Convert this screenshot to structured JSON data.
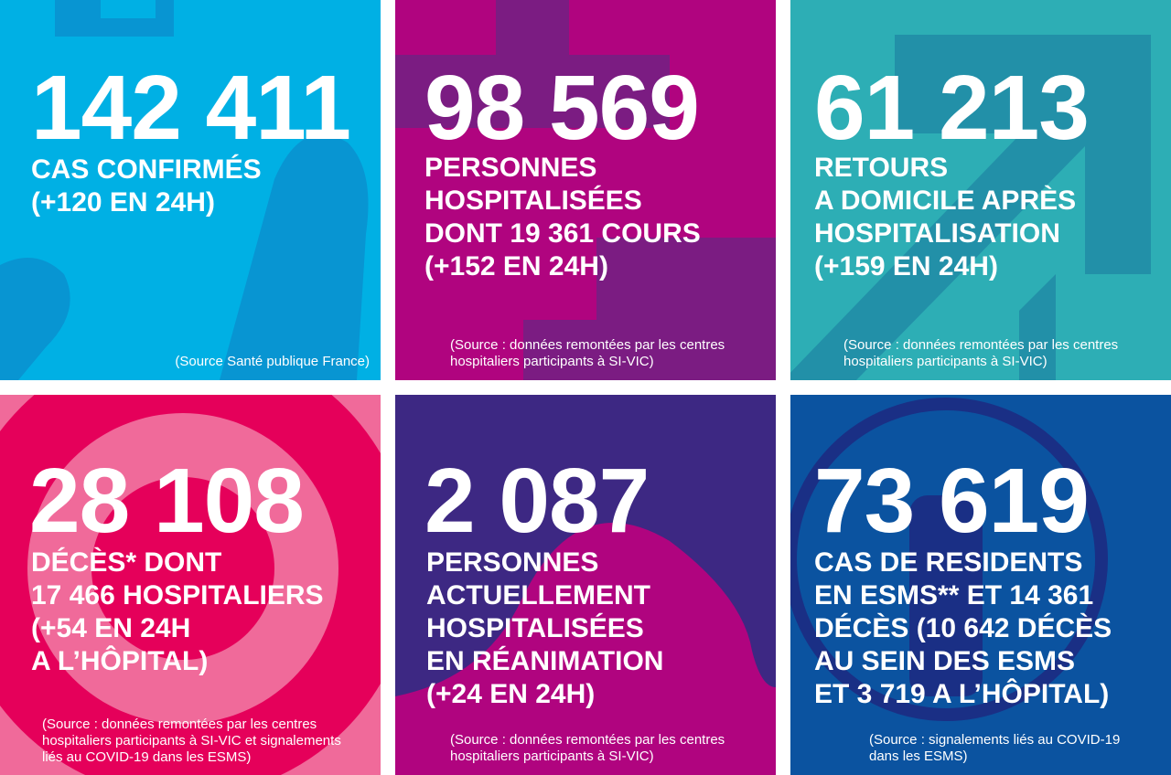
{
  "colors": {
    "blue": "#00b0e4",
    "magenta": "#b0047f",
    "teal": "#2daeb5",
    "pink": "#e5005a",
    "violet": "#3d2883",
    "navy": "#0b53a0"
  },
  "tiles": [
    {
      "number": "142 411",
      "label": "CAS CONFIRMÉS\n(+120 EN 24H)",
      "source": "(Source Santé publique France)"
    },
    {
      "number": "98 569",
      "label": "PERSONNES\nHOSPITALISÉES\nDONT 19 361 COURS\n(+152 EN 24H)",
      "source": "(Source : données remontées par les centres\nhospitaliers participants à SI-VIC)"
    },
    {
      "number": "61 213",
      "label": "RETOURS\nA DOMICILE APRÈS\nHOSPITALISATION\n(+159 EN 24H)",
      "source": "(Source : données remontées par les centres\nhospitaliers participants à SI-VIC)"
    },
    {
      "number": "28 108",
      "label": "DÉCÈS* DONT\n17 466 HOSPITALIERS\n(+54 EN 24H\nA L’HÔPITAL)",
      "source": "(Source : données remontées par les centres\nhospitaliers participants à SI-VIC et signalements\nliés au COVID-19 dans les ESMS)"
    },
    {
      "number": "2 087",
      "label": "PERSONNES\nACTUELLEMENT\nHOSPITALISÉES\nEN RÉANIMATION\n(+24 EN 24H)",
      "source": "(Source : données remontées par les centres\nhospitaliers participants à SI-VIC)"
    },
    {
      "number": "73 619",
      "label": "CAS DE RESIDENTS\nEN ESMS** ET 14 361\nDÉCÈS (10 642 DÉCÈS\nAU SEIN DES ESMS\nET 3 719 A L’HÔPITAL)",
      "source": "(Source : signalements liés au COVID-19\ndans les ESMS)"
    }
  ]
}
